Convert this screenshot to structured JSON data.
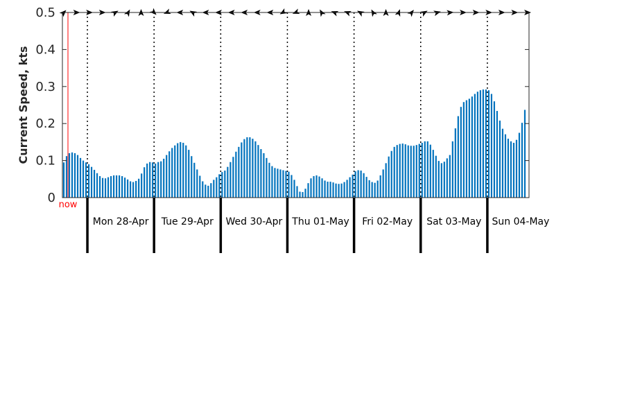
{
  "chart_data": {
    "type": "bar",
    "title": "",
    "xlabel": "",
    "ylabel": "Current Speed, kts",
    "ylim": [
      0,
      0.5
    ],
    "yticks": [
      "0",
      "0.1",
      "0.2",
      "0.3",
      "0.4",
      "0.5"
    ],
    "grid": false,
    "bar_color": "#0072BD",
    "now_marker": {
      "label": "now",
      "hour": 17,
      "color": "#ff0000"
    },
    "days": [
      "Mon 28-Apr",
      "Tue 29-Apr",
      "Wed 30-Apr",
      "Thu 01-May",
      "Fri 02-May",
      "Sat 03-May",
      "Sun 04-May"
    ],
    "x_units": "hours from 00:00 Sun 27-Apr (hourly bars)",
    "hours_shown": [
      15,
      183
    ],
    "values": [
      0.095,
      0.112,
      0.12,
      0.122,
      0.12,
      0.115,
      0.107,
      0.1,
      0.095,
      0.09,
      0.083,
      0.075,
      0.066,
      0.058,
      0.053,
      0.052,
      0.055,
      0.058,
      0.06,
      0.06,
      0.06,
      0.058,
      0.054,
      0.049,
      0.044,
      0.042,
      0.045,
      0.051,
      0.065,
      0.082,
      0.092,
      0.096,
      0.095,
      0.092,
      0.096,
      0.098,
      0.105,
      0.115,
      0.125,
      0.134,
      0.141,
      0.147,
      0.15,
      0.148,
      0.141,
      0.129,
      0.112,
      0.094,
      0.076,
      0.059,
      0.044,
      0.035,
      0.032,
      0.039,
      0.048,
      0.055,
      0.063,
      0.069,
      0.073,
      0.083,
      0.096,
      0.11,
      0.124,
      0.137,
      0.149,
      0.158,
      0.163,
      0.163,
      0.159,
      0.152,
      0.142,
      0.131,
      0.12,
      0.107,
      0.094,
      0.085,
      0.08,
      0.078,
      0.076,
      0.074,
      0.072,
      0.07,
      0.061,
      0.048,
      0.031,
      0.016,
      0.015,
      0.024,
      0.039,
      0.052,
      0.058,
      0.06,
      0.057,
      0.052,
      0.046,
      0.043,
      0.043,
      0.041,
      0.038,
      0.037,
      0.038,
      0.042,
      0.048,
      0.055,
      0.062,
      0.071,
      0.074,
      0.073,
      0.066,
      0.056,
      0.047,
      0.042,
      0.04,
      0.046,
      0.06,
      0.076,
      0.093,
      0.111,
      0.126,
      0.137,
      0.142,
      0.145,
      0.146,
      0.144,
      0.141,
      0.14,
      0.14,
      0.142,
      0.145,
      0.148,
      0.152,
      0.152,
      0.143,
      0.129,
      0.113,
      0.099,
      0.093,
      0.097,
      0.106,
      0.115,
      0.152,
      0.187,
      0.22,
      0.245,
      0.258,
      0.263,
      0.267,
      0.273,
      0.28,
      0.286,
      0.29,
      0.292,
      0.292,
      0.29,
      0.28,
      0.26,
      0.234,
      0.208,
      0.186,
      0.171,
      0.159,
      0.152,
      0.148,
      0.156,
      0.175,
      0.202,
      0.237
    ],
    "direction_arrows_deg": [
      45,
      90,
      90,
      90,
      60,
      30,
      0,
      135,
      250,
      270,
      300,
      270,
      270,
      270,
      270,
      270,
      270,
      240,
      250,
      0,
      330,
      290,
      290,
      300,
      330,
      0,
      20,
      40,
      60,
      75,
      85,
      90,
      90,
      90,
      90,
      90,
      90
    ]
  }
}
